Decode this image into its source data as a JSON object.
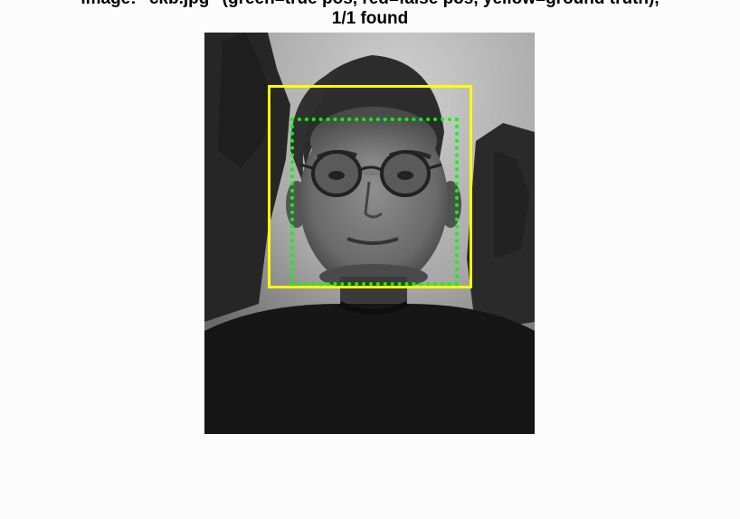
{
  "figure": {
    "title_line1": "image: \"ckb.jpg\" (green=true pos, red=false pos, yellow=ground truth),",
    "title_line2": "1/1 found"
  },
  "detections": {
    "found": 1,
    "total": 1,
    "ground_truth_color": "#ffff00",
    "true_positive_color": "#00ff00",
    "false_positive_color": "#ff0000"
  }
}
